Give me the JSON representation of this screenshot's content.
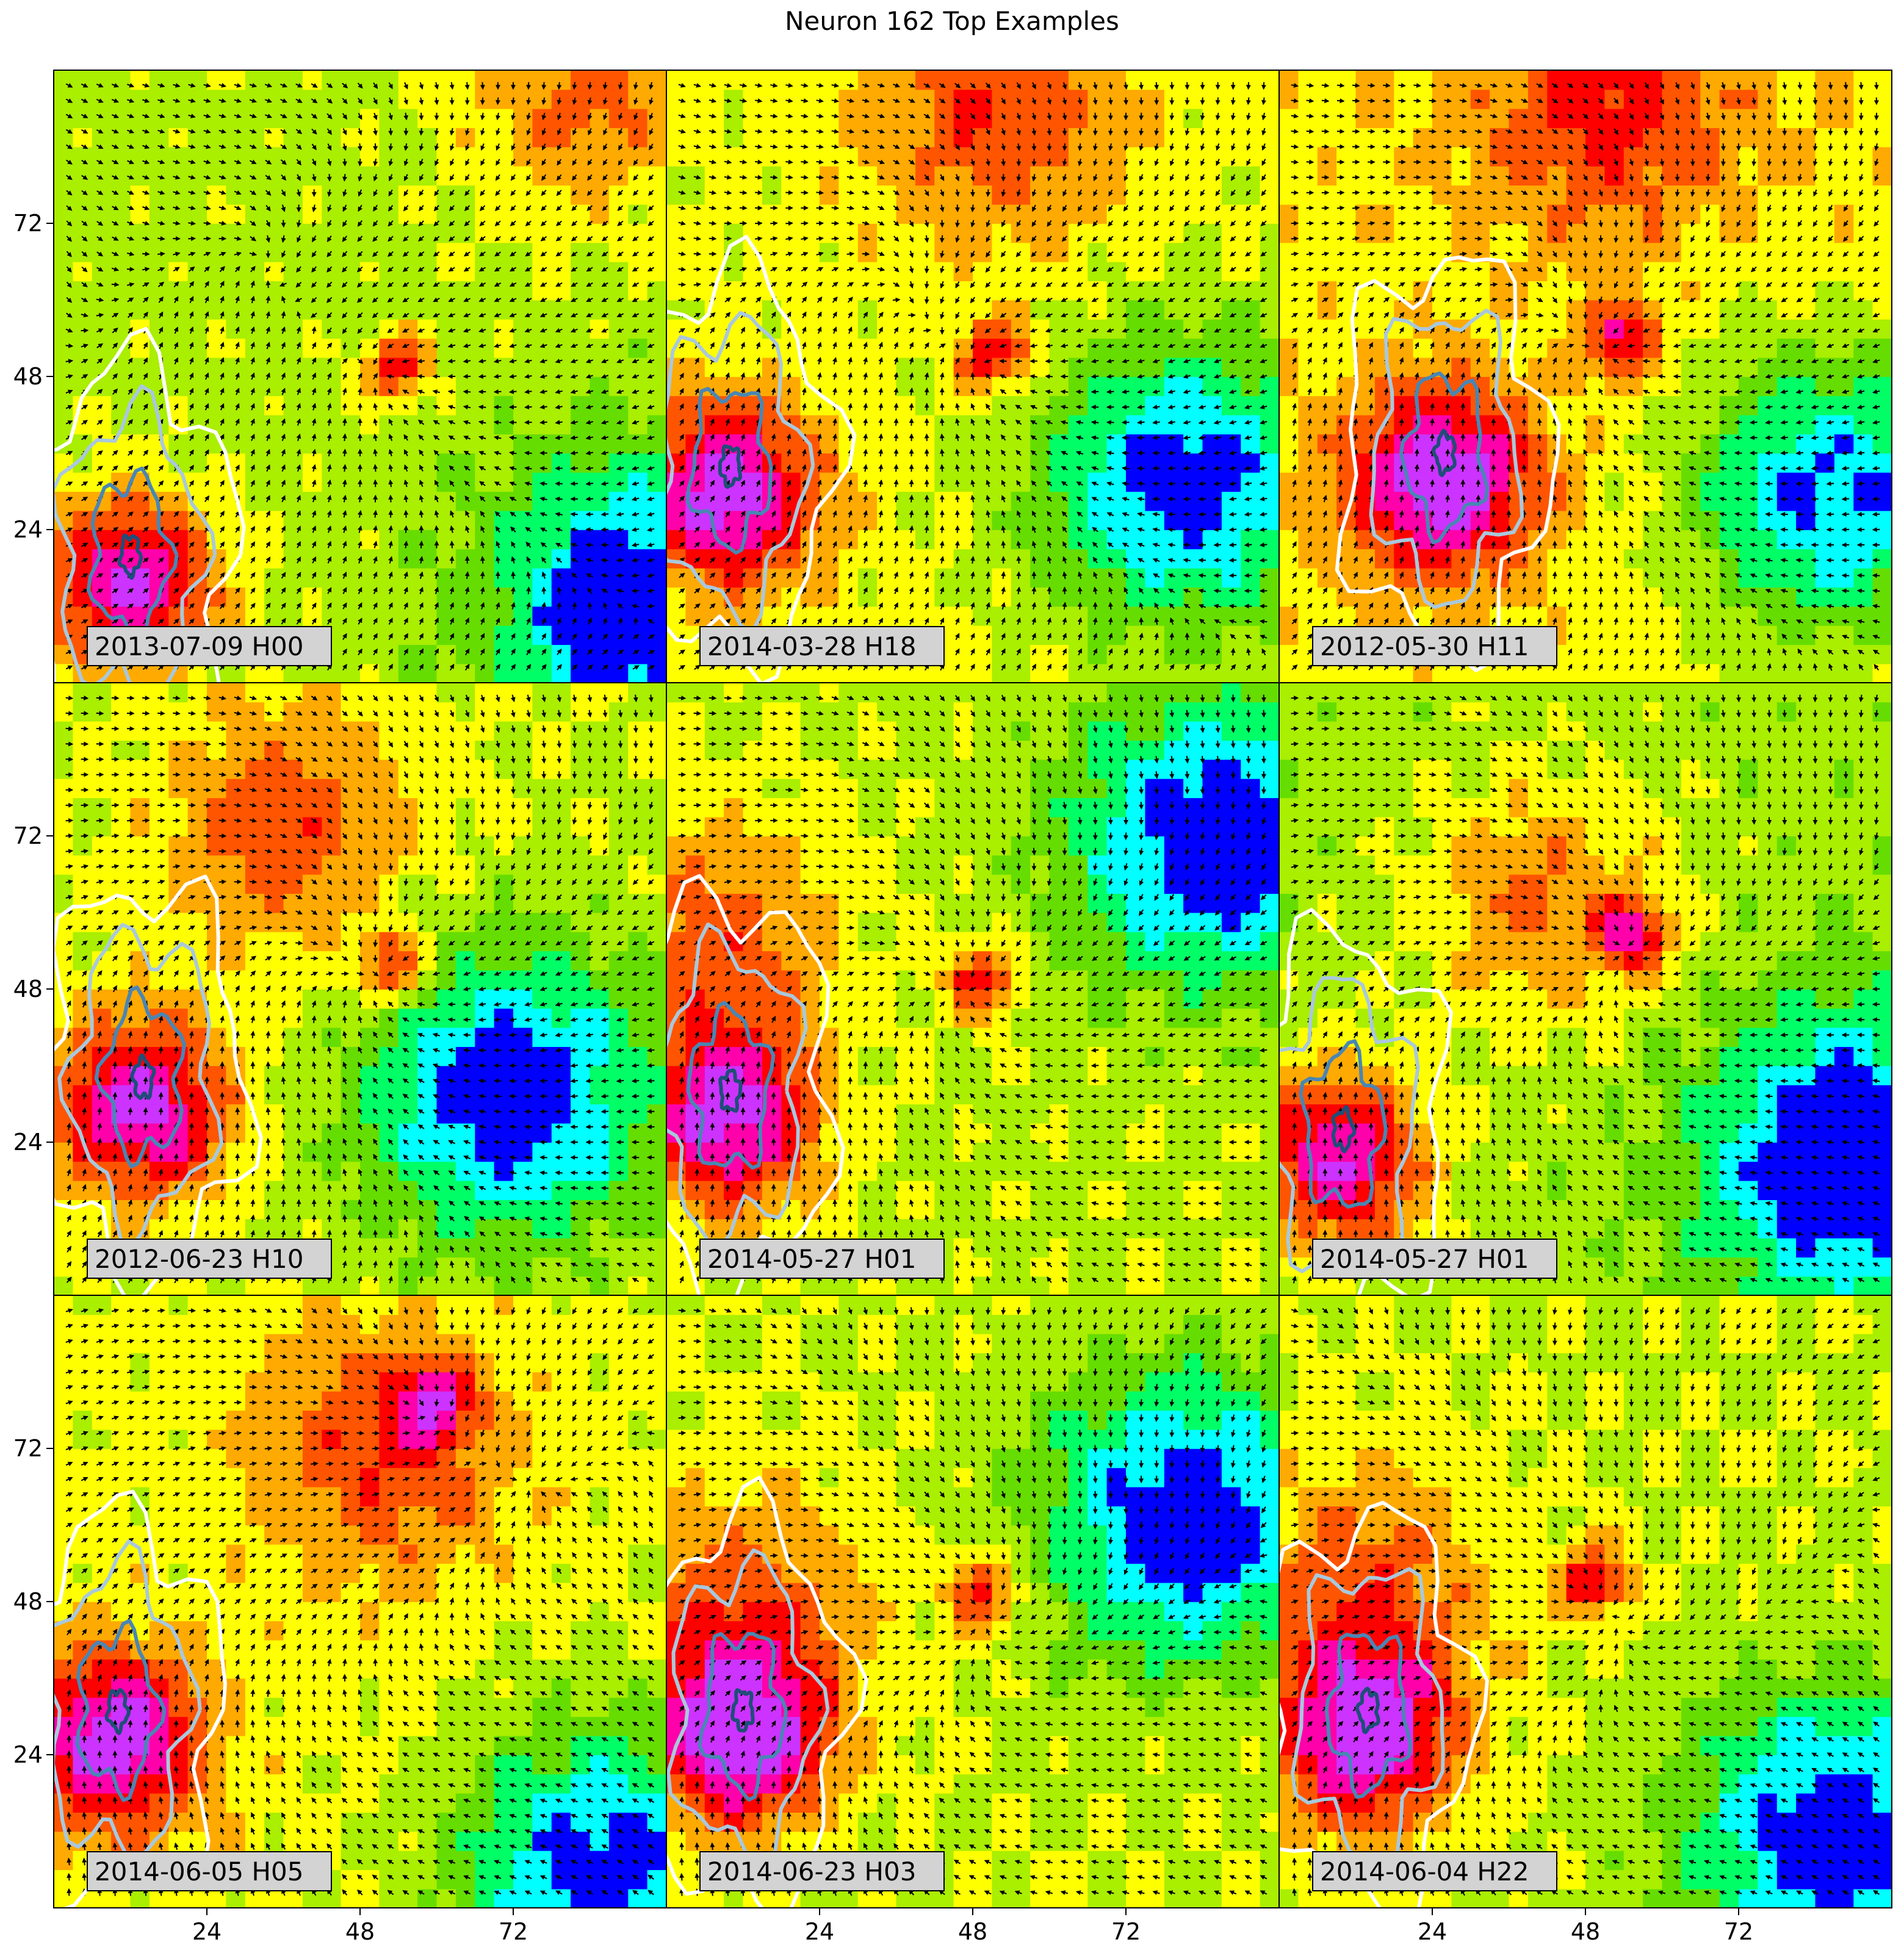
{
  "chart_data": {
    "type": "heatmap",
    "title": "Neuron 162 Top Examples",
    "layout": {
      "rows": 3,
      "cols": 3,
      "shared_axes": true
    },
    "axes": {
      "xlim": [
        0,
        96
      ],
      "ylim": [
        0,
        96
      ],
      "xticks": [
        24,
        48,
        72
      ],
      "yticks": [
        24,
        48,
        72
      ],
      "xtick_labels": [
        "24",
        "48",
        "72"
      ],
      "ytick_labels": [
        "24",
        "48",
        "72"
      ],
      "xlabel": "",
      "ylabel": "",
      "grid": false
    },
    "colormap": [
      "#0000ff",
      "#00ffff",
      "#00ff66",
      "#66dd00",
      "#aaee00",
      "#ffff00",
      "#ffaa00",
      "#ff5500",
      "#ff0000",
      "#ff00aa",
      "#cc33ff"
    ],
    "contour_colors": [
      "#ffffff",
      "#a9c8dc",
      "#4a86b4",
      "#1f4e79"
    ],
    "arrow_color": "#000000",
    "panels": [
      {
        "label": "2013-07-09 H00",
        "row": 0,
        "col": 0
      },
      {
        "label": "2014-03-28 H18",
        "row": 0,
        "col": 1
      },
      {
        "label": "2012-05-30 H11",
        "row": 0,
        "col": 2
      },
      {
        "label": "2012-06-23 H10",
        "row": 1,
        "col": 0
      },
      {
        "label": "2014-05-27 H01",
        "row": 1,
        "col": 1
      },
      {
        "label": "2014-05-27 H01",
        "row": 1,
        "col": 2
      },
      {
        "label": "2014-06-05 H05",
        "row": 2,
        "col": 0
      },
      {
        "label": "2014-06-23 H03",
        "row": 2,
        "col": 1
      },
      {
        "label": "2014-06-04 H22",
        "row": 2,
        "col": 2
      }
    ]
  }
}
